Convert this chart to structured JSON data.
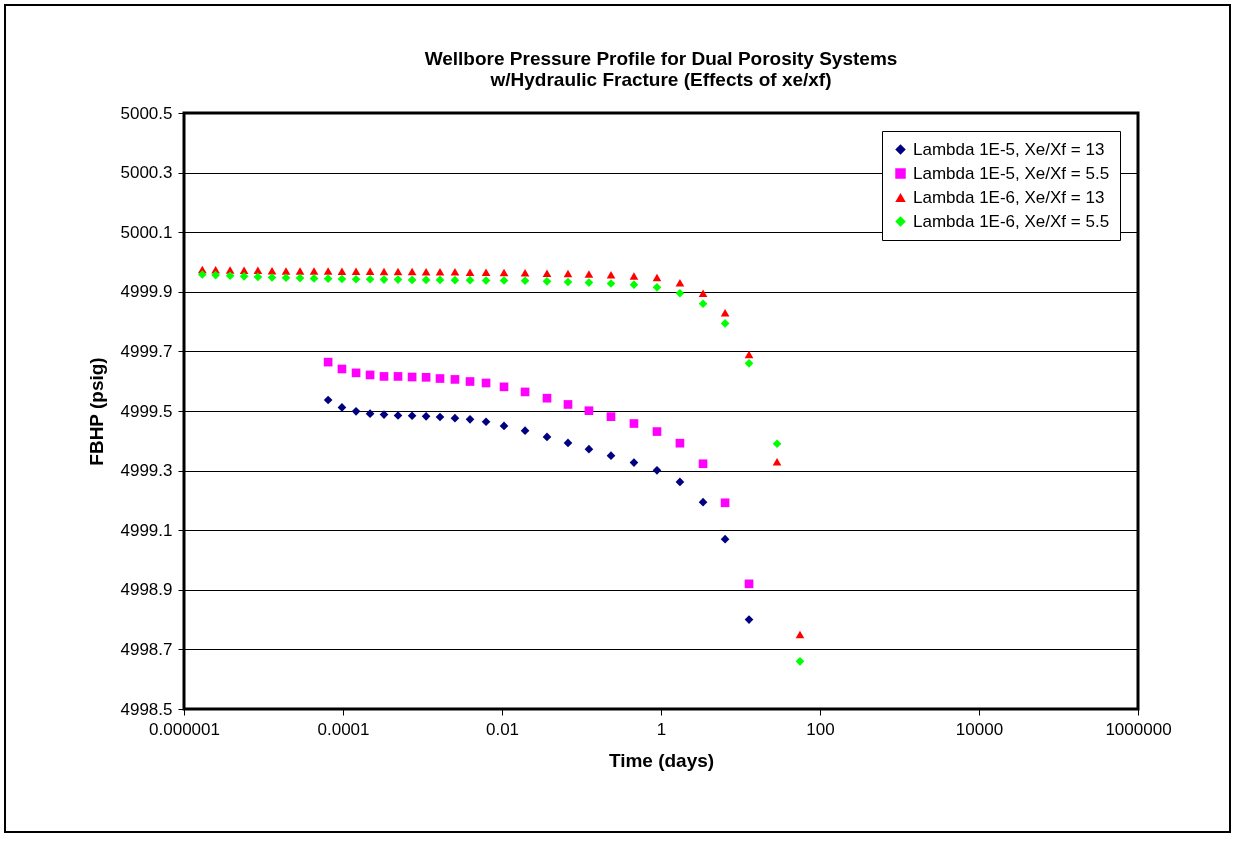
{
  "chart_data": {
    "type": "scatter",
    "title": "Wellbore Pressure Profile for Dual Porosity Systems\nw/Hydraulic Fracture (Effects of xe/xf)",
    "xlabel": "Time (days)",
    "ylabel": "FBHP (psig)",
    "log": "x",
    "grid": "y",
    "legend": "top right",
    "xlim": [
      1e-06,
      1000000
    ],
    "xticks": [
      {
        "value": 1e-06,
        "label": "0.000001"
      },
      0.0001,
      0.01,
      1,
      100,
      10000,
      1000000
    ],
    "ylim": [
      4998.5,
      5000.5
    ],
    "yticks": [
      4998.5,
      4998.7,
      4998.9,
      4999.1,
      4999.3,
      4999.5,
      4999.7,
      4999.9,
      5000.1,
      5000.3,
      5000.5
    ],
    "series": [
      {
        "name": "Lambda 1E-5, Xe/Xf = 13",
        "color": "#000080",
        "marker": "diamond",
        "x": [
          6.5e-05,
          9.7e-05,
          0.000146,
          0.000219,
          0.000328,
          0.000492,
          0.00074,
          0.00111,
          0.00166,
          0.00256,
          0.00396,
          0.0063,
          0.0106,
          0.0195,
          0.0368,
          0.0676,
          0.124,
          0.235,
          0.457,
          0.89,
          1.73,
          3.38,
          6.4,
          12.8
        ],
        "values": [
          4999.537,
          4999.512,
          4999.499,
          4999.491,
          4999.488,
          4999.485,
          4999.484,
          4999.482,
          4999.48,
          4999.476,
          4999.472,
          4999.464,
          4999.45,
          4999.434,
          4999.413,
          4999.393,
          4999.372,
          4999.35,
          4999.327,
          4999.301,
          4999.262,
          4999.194,
          4999.07,
          4998.8
        ]
      },
      {
        "name": "Lambda 1E-5, Xe/Xf = 5.5",
        "color": "#ff00ff",
        "marker": "square",
        "x": [
          6.5e-05,
          9.7e-05,
          0.000146,
          0.000219,
          0.000328,
          0.000492,
          0.00074,
          0.00111,
          0.00166,
          0.00256,
          0.00396,
          0.0063,
          0.0106,
          0.0195,
          0.0368,
          0.0676,
          0.124,
          0.235,
          0.457,
          0.89,
          1.73,
          3.38,
          6.4,
          12.8
        ],
        "values": [
          4999.664,
          4999.641,
          4999.628,
          4999.621,
          4999.616,
          4999.616,
          4999.614,
          4999.613,
          4999.609,
          4999.606,
          4999.599,
          4999.594,
          4999.581,
          4999.564,
          4999.543,
          4999.522,
          4999.501,
          4999.481,
          4999.458,
          4999.431,
          4999.392,
          4999.323,
          4999.192,
          4998.92
        ]
      },
      {
        "name": "Lambda 1E-6, Xe/Xf = 13",
        "color": "#ff0000",
        "marker": "triangle",
        "x": [
          1.7e-06,
          2.5e-06,
          3.8e-06,
          5.7e-06,
          8.5e-06,
          1.28e-05,
          1.92e-05,
          2.88e-05,
          4.32e-05,
          6.5e-05,
          9.7e-05,
          0.000146,
          0.000219,
          0.000328,
          0.000492,
          0.00074,
          0.00111,
          0.00166,
          0.00256,
          0.00396,
          0.0063,
          0.0106,
          0.0195,
          0.0368,
          0.0676,
          0.124,
          0.235,
          0.457,
          0.89,
          1.73,
          3.38,
          6.4,
          12.8,
          28.8,
          56
        ],
        "values": [
          4999.975,
          4999.974,
          4999.973,
          4999.972,
          4999.972,
          4999.971,
          4999.97,
          4999.97,
          4999.97,
          4999.97,
          4999.969,
          4999.969,
          4999.969,
          4999.968,
          4999.968,
          4999.968,
          4999.967,
          4999.967,
          4999.967,
          4999.966,
          4999.966,
          4999.965,
          4999.964,
          4999.962,
          4999.961,
          4999.96,
          4999.957,
          4999.953,
          4999.948,
          4999.93,
          4999.895,
          4999.83,
          4999.69,
          4999.33,
          4998.75
        ]
      },
      {
        "name": "Lambda 1E-6, Xe/Xf = 5.5",
        "color": "#00ff00",
        "marker": "diamond",
        "x": [
          1.7e-06,
          2.5e-06,
          3.8e-06,
          5.7e-06,
          8.5e-06,
          1.28e-05,
          1.92e-05,
          2.88e-05,
          4.32e-05,
          6.5e-05,
          9.7e-05,
          0.000146,
          0.000219,
          0.000328,
          0.000492,
          0.00074,
          0.00111,
          0.00166,
          0.00256,
          0.00396,
          0.0063,
          0.0106,
          0.0195,
          0.0368,
          0.0676,
          0.124,
          0.235,
          0.457,
          0.89,
          1.73,
          3.38,
          6.4,
          12.8,
          28.8,
          56
        ],
        "values": [
          4999.958,
          4999.956,
          4999.954,
          4999.952,
          4999.95,
          4999.948,
          4999.947,
          4999.946,
          4999.945,
          4999.944,
          4999.943,
          4999.942,
          4999.942,
          4999.941,
          4999.941,
          4999.94,
          4999.94,
          4999.94,
          4999.939,
          4999.939,
          4999.938,
          4999.938,
          4999.937,
          4999.935,
          4999.933,
          4999.931,
          4999.928,
          4999.924,
          4999.915,
          4999.895,
          4999.86,
          4999.794,
          4999.66,
          4999.39,
          4998.66
        ]
      }
    ]
  }
}
